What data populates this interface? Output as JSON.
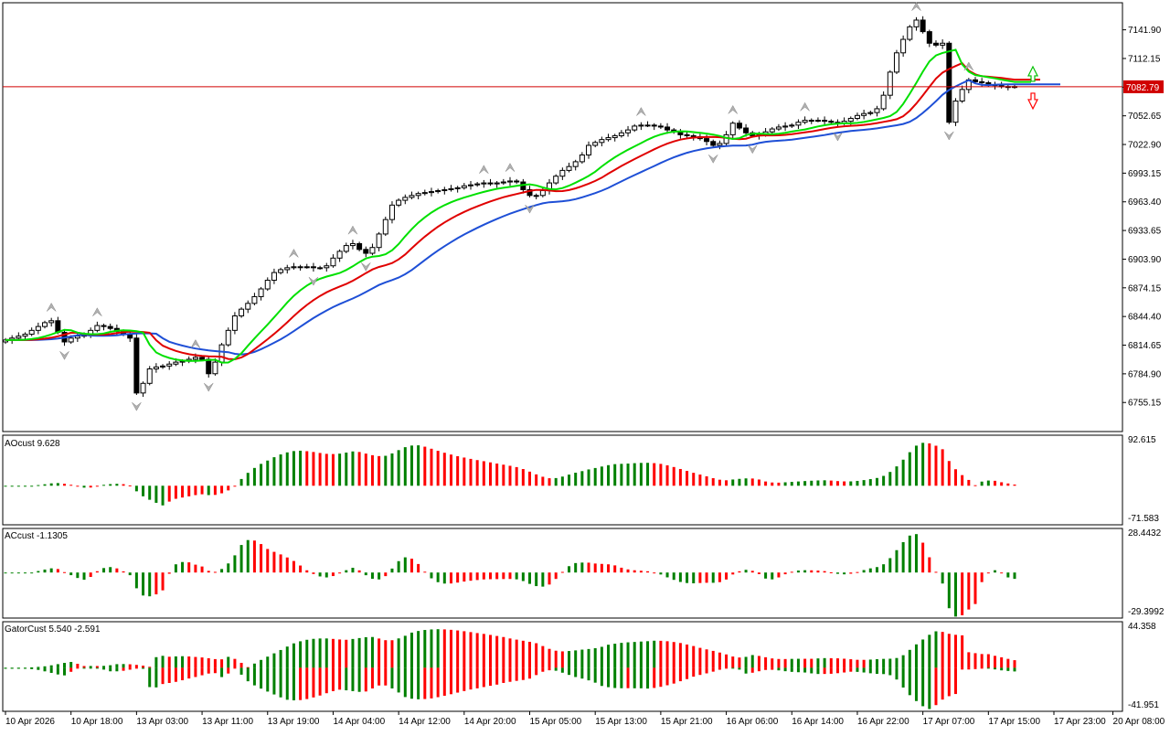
{
  "colors": {
    "background": "#ffffff",
    "frame": "#000000",
    "bull": "#008000",
    "bear": "#ff0000",
    "jaw": "#1e4fd6",
    "teeth": "#e00000",
    "lips": "#00e000",
    "price_line": "#d00000",
    "price_tag_bg": "#d00000",
    "fractal": "#b0b0b0",
    "signal_up": "#00c000",
    "signal_down": "#ff0000"
  },
  "chart_data": [
    {
      "type": "candlestick",
      "panel": "main",
      "ylim": [
        6725,
        7170
      ],
      "ticks": [
        "7141.90",
        "7112.15",
        "7082.40",
        "7052.65",
        "7022.90",
        "6993.15",
        "6963.40",
        "6933.65",
        "6903.90",
        "6874.15",
        "6844.40",
        "6814.65",
        "6784.90",
        "6755.15"
      ],
      "tick_values": [
        7141.9,
        7112.15,
        7082.4,
        7052.65,
        7022.9,
        6993.15,
        6963.4,
        6933.65,
        6903.9,
        6874.15,
        6844.4,
        6814.65,
        6784.9,
        6755.15
      ],
      "current_price": "7082.79",
      "current_price_value": 7082.79,
      "x_labels": [
        "10 Apr 2026",
        "10 Apr 18:00",
        "13 Apr 03:00",
        "13 Apr 11:00",
        "13 Apr 19:00",
        "14 Apr 04:00",
        "14 Apr 12:00",
        "14 Apr 20:00",
        "15 Apr 05:00",
        "15 Apr 13:00",
        "15 Apr 21:00",
        "16 Apr 06:00",
        "16 Apr 14:00",
        "16 Apr 22:00",
        "17 Apr 07:00",
        "17 Apr 15:00",
        "17 Apr 23:00",
        "20 Apr 08:00"
      ],
      "x_label_bars": [
        0,
        10,
        20,
        30,
        40,
        50,
        60,
        70,
        80,
        90,
        100,
        110,
        120,
        130,
        140,
        150,
        160,
        169
      ],
      "closes": [
        6820,
        6822,
        6824,
        6826,
        6830,
        6834,
        6838,
        6840,
        6828,
        6818,
        6822,
        6824,
        6826,
        6830,
        6835,
        6834,
        6832,
        6829,
        6826,
        6822,
        6765,
        6775,
        6790,
        6792,
        6793,
        6795,
        6797,
        6798,
        6800,
        6802,
        6800,
        6785,
        6797,
        6815,
        6830,
        6845,
        6852,
        6858,
        6865,
        6873,
        6882,
        6890,
        6893,
        6895,
        6896,
        6896,
        6896,
        6895,
        6895,
        6897,
        6905,
        6912,
        6918,
        6920,
        6914,
        6910,
        6916,
        6930,
        6945,
        6960,
        6965,
        6968,
        6970,
        6972,
        6973,
        6974,
        6975,
        6976,
        6977,
        6978,
        6980,
        6981,
        6982,
        6983,
        6982,
        6983,
        6984,
        6985,
        6984,
        6976,
        6970,
        6970,
        6975,
        6983,
        6990,
        6996,
        7000,
        7005,
        7012,
        7022,
        7025,
        7028,
        7030,
        7032,
        7035,
        7038,
        7042,
        7043,
        7043,
        7042,
        7041,
        7038,
        7036,
        7033,
        7032,
        7031,
        7029,
        7026,
        7022,
        7024,
        7033,
        7045,
        7040,
        7035,
        7032,
        7033,
        7036,
        7039,
        7041,
        7042,
        7043,
        7046,
        7048,
        7048,
        7048,
        7047,
        7046,
        7045,
        7047,
        7050,
        7053,
        7055,
        7056,
        7060,
        7074,
        7098,
        7118,
        7132,
        7145,
        7152,
        7140,
        7128,
        7126,
        7128,
        7046,
        7068,
        7080,
        7090,
        7088,
        7087,
        7085,
        7084,
        7083,
        7083,
        7082.79
      ],
      "series": [
        {
          "name": "Jaw",
          "kind": "line"
        },
        {
          "name": "Teeth",
          "kind": "line"
        },
        {
          "name": "Lips",
          "kind": "line"
        }
      ]
    },
    {
      "type": "bar",
      "panel": "ao",
      "label": "AOcust 9.628",
      "ylim": [
        -71.583,
        92.615
      ],
      "ticks": [
        "92.615",
        "-71.583"
      ]
    },
    {
      "type": "bar",
      "panel": "ac",
      "label": "ACcust -1.1305",
      "ylim": [
        -29.3992,
        28.4432
      ],
      "ticks": [
        "28.4432",
        "-29.3992"
      ]
    },
    {
      "type": "bar",
      "panel": "gator",
      "label": "GatorCust 5.540 -2.591",
      "ylim": [
        -41.951,
        44.358
      ],
      "ticks": [
        "44.358",
        "-41.951"
      ]
    }
  ]
}
